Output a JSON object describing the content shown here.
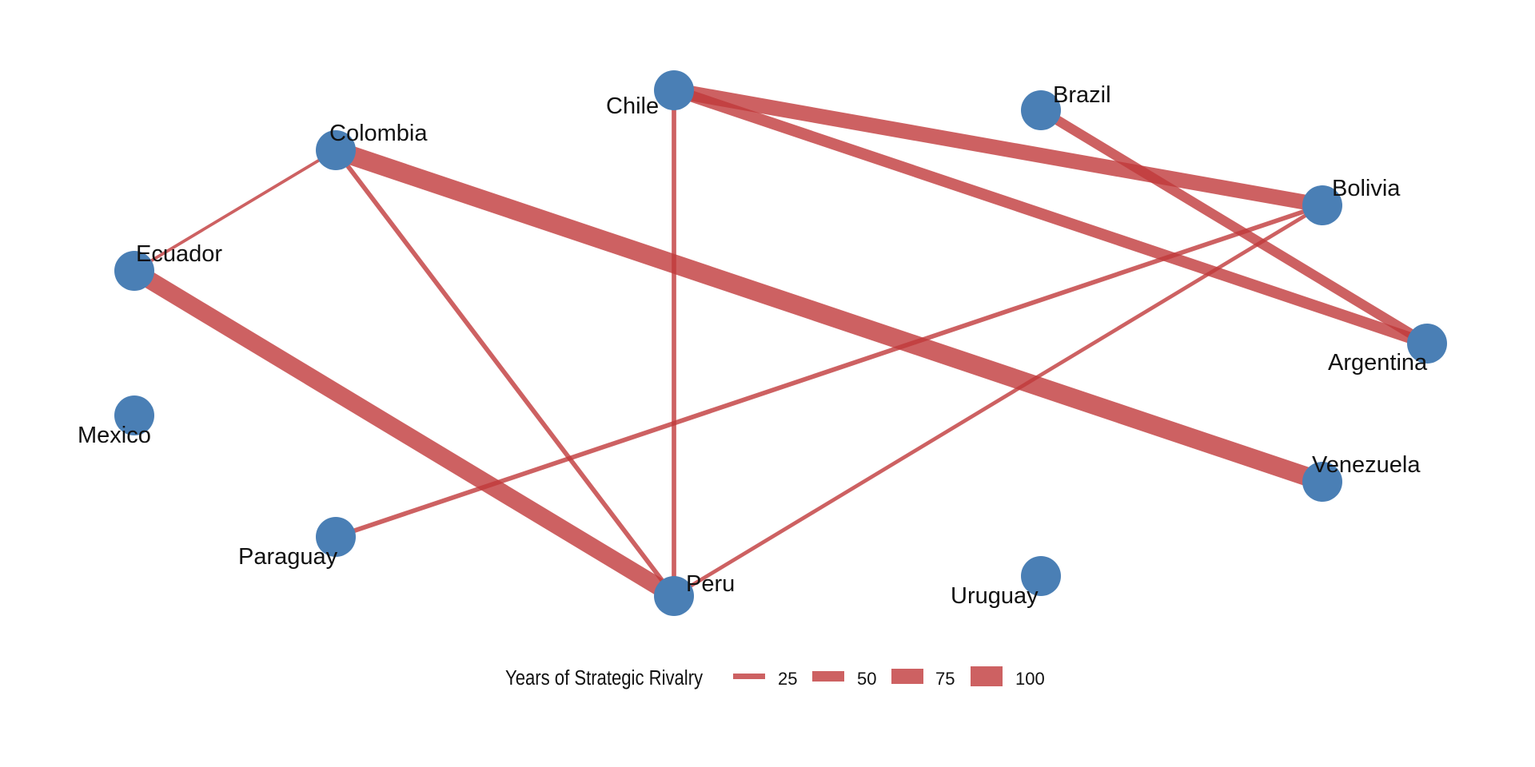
{
  "colors": {
    "edge": "#c0393b",
    "node": "#4a7fb5",
    "background": "#ffffff"
  },
  "chart_data": {
    "type": "network",
    "nodes": [
      {
        "id": "Chile",
        "label": "Chile"
      },
      {
        "id": "Brazil",
        "label": "Brazil"
      },
      {
        "id": "Colombia",
        "label": "Colombia"
      },
      {
        "id": "Bolivia",
        "label": "Bolivia"
      },
      {
        "id": "Ecuador",
        "label": "Ecuador"
      },
      {
        "id": "Argentina",
        "label": "Argentina"
      },
      {
        "id": "Mexico",
        "label": "Mexico"
      },
      {
        "id": "Venezuela",
        "label": "Venezuela"
      },
      {
        "id": "Paraguay",
        "label": "Paraguay"
      },
      {
        "id": "Peru",
        "label": "Peru"
      },
      {
        "id": "Uruguay",
        "label": "Uruguay"
      }
    ],
    "edges": [
      {
        "source": "Chile",
        "target": "Bolivia",
        "years": 100
      },
      {
        "source": "Chile",
        "target": "Argentina",
        "years": 75
      },
      {
        "source": "Chile",
        "target": "Peru",
        "years": 30
      },
      {
        "source": "Brazil",
        "target": "Argentina",
        "years": 65
      },
      {
        "source": "Colombia",
        "target": "Venezuela",
        "years": 125
      },
      {
        "source": "Colombia",
        "target": "Ecuador",
        "years": 20
      },
      {
        "source": "Colombia",
        "target": "Peru",
        "years": 30
      },
      {
        "source": "Ecuador",
        "target": "Peru",
        "years": 115
      },
      {
        "source": "Bolivia",
        "target": "Paraguay",
        "years": 30
      },
      {
        "source": "Bolivia",
        "target": "Peru",
        "years": 25
      }
    ],
    "legend": {
      "title": "Years of Strategic Rivalry",
      "keys": [
        "25",
        "50",
        "75",
        "100"
      ]
    }
  }
}
